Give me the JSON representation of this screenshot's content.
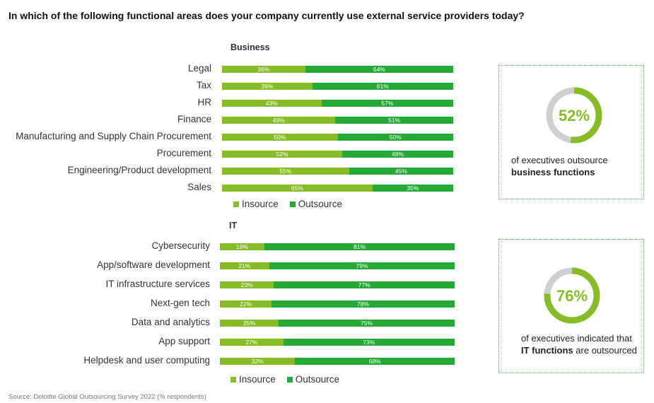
{
  "question": "In which of the following functional areas does your company currently use external service providers today?",
  "colors": {
    "insource": "#86bc25",
    "outsource": "#26a836",
    "ring_rest": "#d0d0d0",
    "ring_text": "#86bc25"
  },
  "chart_data": [
    {
      "type": "bar",
      "stacked": true,
      "orientation": "horizontal",
      "title": "Business",
      "categories": [
        "Legal",
        "Tax",
        "HR",
        "Finance",
        "Manufacturing and Supply Chain Procurement",
        "Procurement",
        "Engineering/Product development",
        "Sales"
      ],
      "series": [
        {
          "name": "Insource",
          "values": [
            36,
            39,
            43,
            49,
            50,
            52,
            55,
            65
          ],
          "labels": [
            "36%",
            "39%",
            "43%",
            "49%",
            "50%",
            "52%",
            "55%",
            "65%"
          ]
        },
        {
          "name": "Outsource",
          "values": [
            64,
            61,
            57,
            51,
            50,
            48,
            45,
            35
          ],
          "labels": [
            "64%",
            "61%",
            "57%",
            "51%",
            "50%",
            "48%",
            "45%",
            "35%"
          ]
        }
      ],
      "xlim": [
        0,
        100
      ],
      "legend": "bottom"
    },
    {
      "type": "bar",
      "stacked": true,
      "orientation": "horizontal",
      "title": "IT",
      "categories": [
        "Cybersecurity",
        "App/software development",
        "IT infrastructure services",
        "Next-gen tech",
        "Data and analytics",
        "App support",
        "Helpdesk and user computing"
      ],
      "series": [
        {
          "name": "Insource",
          "values": [
            19,
            21,
            23,
            22,
            25,
            27,
            32
          ],
          "labels": [
            "19%",
            "21%",
            "23%",
            "22%",
            "25%",
            "27%",
            "32%"
          ]
        },
        {
          "name": "Outsource",
          "values": [
            81,
            79,
            77,
            78,
            75,
            73,
            68
          ],
          "labels": [
            "81%",
            "79%",
            "77%",
            "78%",
            "75%",
            "73%",
            "68%"
          ]
        }
      ],
      "xlim": [
        0,
        100
      ],
      "legend": "bottom"
    }
  ],
  "callouts": [
    {
      "value": 52,
      "label": "52%",
      "text_pre": "of executives outsource",
      "text_bold": "business functions",
      "text_post": ""
    },
    {
      "value": 76,
      "label": "76%",
      "text_pre": "of executives indicated that",
      "text_bold": "IT functions",
      "text_post": "are outsourced"
    }
  ],
  "source": "Source: Deloitte Global Outsourcing Survey 2022 (% respondents)"
}
